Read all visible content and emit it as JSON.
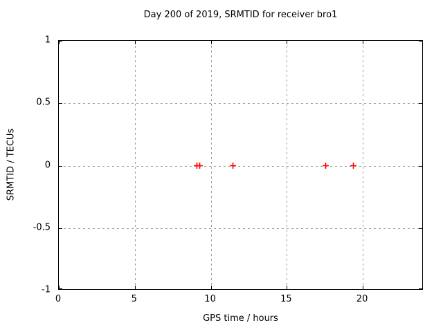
{
  "chart_data": {
    "type": "scatter",
    "title": "Day 200 of 2019, SRMTID for receiver bro1",
    "xlabel": "GPS time / hours",
    "ylabel": "SRMTID / TECUs",
    "xlim": [
      0,
      24
    ],
    "ylim": [
      -1,
      1
    ],
    "xticks": [
      0,
      5,
      10,
      15,
      20
    ],
    "yticks": [
      -1,
      -0.5,
      0,
      0.5,
      1
    ],
    "grid": true,
    "grid_style": "dashed",
    "legend": false,
    "series": [
      {
        "name": "SRMTID",
        "marker": "plus",
        "color": "#ff0000",
        "points": [
          {
            "x": 9.1,
            "y": 0
          },
          {
            "x": 9.25,
            "y": 0
          },
          {
            "x": 11.45,
            "y": 0
          },
          {
            "x": 17.55,
            "y": 0
          },
          {
            "x": 19.4,
            "y": 0
          }
        ]
      }
    ]
  },
  "colors": {
    "background": "#ffffff",
    "axis": "#000000",
    "grid": "#9a9a9a",
    "marker": "#ff0000",
    "text": "#000000"
  }
}
